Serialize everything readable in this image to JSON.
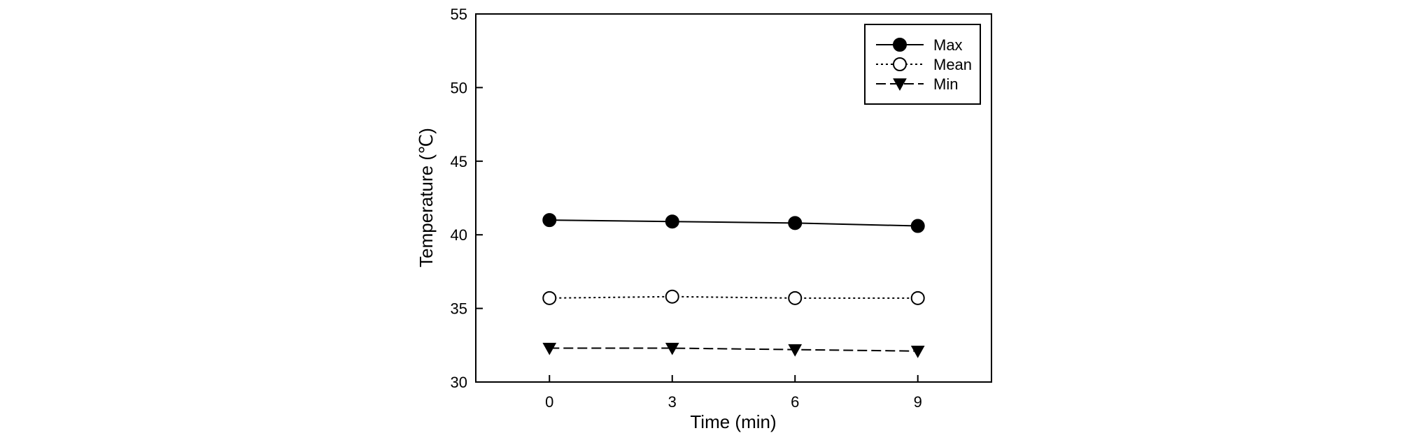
{
  "chart_data": {
    "type": "line",
    "xlabel": "Time (min)",
    "ylabel": "Temperature (℃)",
    "x": [
      0,
      3,
      6,
      9
    ],
    "xlim": [
      -1.8,
      10.8
    ],
    "ylim": [
      30,
      55
    ],
    "xticks": [
      "0",
      "3",
      "6",
      "9"
    ],
    "yticks": [
      "30",
      "35",
      "40",
      "45",
      "50",
      "55"
    ],
    "grid": false,
    "legend_position": "top-right",
    "series": [
      {
        "name": "Max",
        "values": [
          41.0,
          40.9,
          40.8,
          40.6
        ],
        "marker": "filled-circle",
        "line": "solid"
      },
      {
        "name": "Mean",
        "values": [
          35.7,
          35.8,
          35.7,
          35.7
        ],
        "marker": "open-circle",
        "line": "dotted"
      },
      {
        "name": "Min",
        "values": [
          32.3,
          32.3,
          32.2,
          32.1
        ],
        "marker": "filled-triangle-down",
        "line": "dashed"
      }
    ],
    "colors": {
      "line": "#000000",
      "background": "#ffffff"
    }
  }
}
